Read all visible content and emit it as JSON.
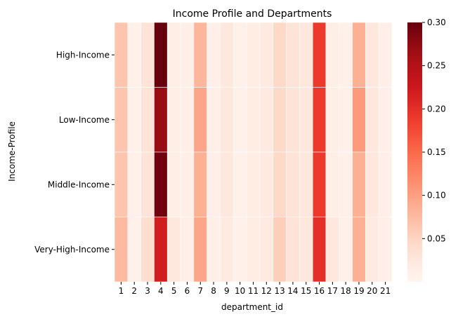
{
  "chart_data": {
    "type": "heatmap",
    "title": "Income Profile and Departments",
    "xlabel": "department_id",
    "ylabel": "Income-Profile",
    "colormap": "Reds",
    "x": [
      "1",
      "2",
      "3",
      "4",
      "5",
      "6",
      "7",
      "8",
      "9",
      "10",
      "11",
      "12",
      "13",
      "14",
      "15",
      "16",
      "17",
      "18",
      "19",
      "20",
      "21"
    ],
    "y": [
      "High-Income",
      "Low-Income",
      "Middle-Income",
      "Very-High-Income"
    ],
    "values": [
      [
        0.065,
        0.008,
        0.03,
        0.3,
        0.012,
        0.01,
        0.08,
        0.01,
        0.025,
        0.008,
        0.015,
        0.02,
        0.045,
        0.03,
        0.025,
        0.19,
        0.012,
        0.008,
        0.085,
        0.025,
        0.01
      ],
      [
        0.065,
        0.008,
        0.03,
        0.27,
        0.012,
        0.01,
        0.095,
        0.01,
        0.025,
        0.008,
        0.015,
        0.02,
        0.045,
        0.03,
        0.025,
        0.19,
        0.012,
        0.008,
        0.105,
        0.025,
        0.01
      ],
      [
        0.065,
        0.008,
        0.03,
        0.295,
        0.012,
        0.01,
        0.085,
        0.01,
        0.025,
        0.008,
        0.015,
        0.02,
        0.045,
        0.03,
        0.025,
        0.19,
        0.012,
        0.008,
        0.085,
        0.025,
        0.01
      ],
      [
        0.075,
        0.008,
        0.04,
        0.22,
        0.025,
        0.01,
        0.095,
        0.01,
        0.02,
        0.008,
        0.015,
        0.02,
        0.055,
        0.03,
        0.025,
        0.2,
        0.025,
        0.008,
        0.085,
        0.02,
        0.01
      ]
    ],
    "colorbar": {
      "range": [
        0.0,
        0.3
      ],
      "ticks": [
        "0.05",
        "0.10",
        "0.15",
        "0.20",
        "0.25",
        "0.30"
      ],
      "tick_values": [
        0.05,
        0.1,
        0.15,
        0.2,
        0.25,
        0.3
      ]
    }
  }
}
